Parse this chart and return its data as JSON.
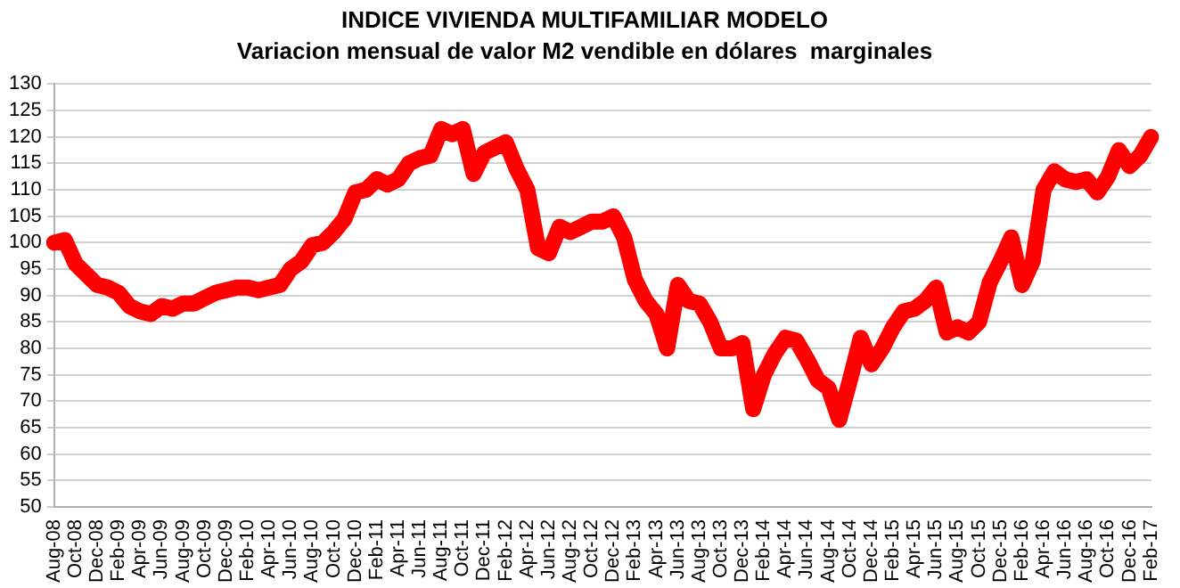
{
  "chart_data": {
    "type": "line",
    "title": "INDICE VIVIENDA MULTIFAMILIAR MODELO",
    "subtitle": "Variacion mensual de valor M2 vendible en dólares  marginales",
    "categories": [
      "Aug-08",
      null,
      "Oct-08",
      null,
      "Dec-08",
      null,
      "Feb-09",
      null,
      "Apr-09",
      null,
      "Jun-09",
      null,
      "Aug-09",
      null,
      "Oct-09",
      null,
      "Dec-09",
      null,
      "Feb-10",
      null,
      "Apr-10",
      null,
      "Jun-10",
      null,
      "Aug-10",
      null,
      "Oct-10",
      null,
      "Dec-10",
      null,
      "Feb-11",
      null,
      "Apr-11",
      null,
      "Jun-11",
      null,
      "Aug-11",
      null,
      "Oct-11",
      null,
      "Dec-11",
      null,
      "Feb-12",
      null,
      "Apr-12",
      null,
      "Jun-12",
      null,
      "Aug-12",
      null,
      "Oct-12",
      null,
      "Dec-12",
      null,
      "Feb-13",
      null,
      "Apr-13",
      null,
      "Jun-13",
      null,
      "Aug-13",
      null,
      "Oct-13",
      null,
      "Dec-13",
      null,
      "Feb-14",
      null,
      "Apr-14",
      null,
      "Jun-14",
      null,
      "Aug-14",
      null,
      "Oct-14",
      null,
      "Dec-14",
      null,
      "Feb-15",
      null,
      "Apr-15",
      null,
      "Jun-15",
      null,
      "Aug-15",
      null,
      "Oct-15",
      null,
      "Dec-15",
      null,
      "Feb-16",
      null,
      "Apr-16",
      null,
      "Jun-16",
      null,
      "Aug-16",
      null,
      "Oct-16",
      null,
      "Dec-16",
      null,
      "Feb-17"
    ],
    "series": [
      {
        "color": "#ff0000",
        "values": [
          100,
          100.5,
          96,
          94,
          92,
          91.5,
          90.5,
          88,
          87,
          86.5,
          88,
          87.5,
          88.5,
          88.5,
          89.5,
          90.5,
          91,
          91.5,
          91.5,
          91,
          91.5,
          92,
          95,
          96.5,
          99.5,
          100,
          102,
          104.5,
          109.5,
          110,
          112,
          111,
          112,
          115,
          116,
          116.5,
          121.5,
          120.5,
          121.5,
          113,
          117,
          118,
          119,
          114,
          110,
          99,
          98,
          103,
          102,
          103,
          104,
          104,
          105,
          101,
          93,
          89,
          86.5,
          80,
          92,
          89,
          88.5,
          85,
          80,
          80,
          81,
          68.5,
          75,
          79,
          82,
          81.5,
          78,
          74,
          72.5,
          66.5,
          74,
          82,
          77,
          80,
          84,
          87,
          87.5,
          89,
          91.5,
          83,
          84,
          83,
          85,
          92.5,
          96.5,
          101,
          92,
          96.5,
          110,
          113.5,
          112,
          111.5,
          112,
          109.5,
          112.5,
          117.5,
          114.5,
          116.5,
          120
        ]
      }
    ],
    "ylim": [
      50,
      130
    ],
    "yticks": [
      50,
      55,
      60,
      65,
      70,
      75,
      80,
      85,
      90,
      95,
      100,
      105,
      110,
      115,
      120,
      125,
      130
    ],
    "grid": "y",
    "legend": false,
    "marker": "none",
    "line_style": "solid"
  }
}
